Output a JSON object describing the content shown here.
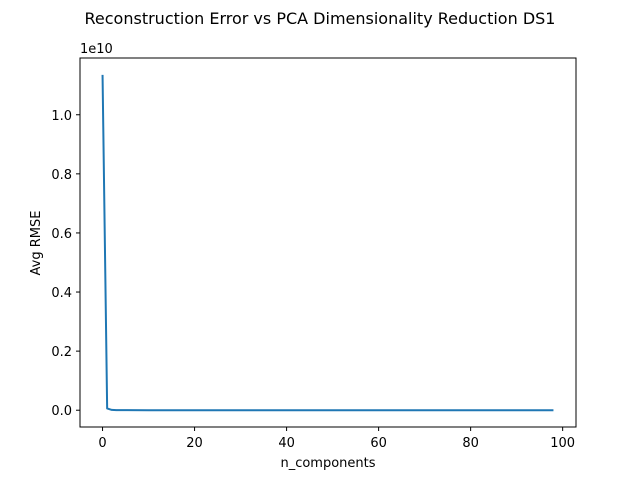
{
  "chart_data": {
    "type": "line",
    "title": "Reconstruction Error vs PCA Dimensionality Reduction DS1",
    "xlabel": "n_components",
    "ylabel": "Avg RMSE",
    "y_offset_label": "1e10",
    "y_scale_factor": 10000000000,
    "xlim": [
      -4.9,
      102.9
    ],
    "ylim": [
      -0.0568,
      1.1921
    ],
    "x_ticks": [
      0,
      20,
      40,
      60,
      80,
      100
    ],
    "y_ticks": [
      0.0,
      0.2,
      0.4,
      0.6,
      0.8,
      1.0
    ],
    "x_tick_labels": [
      "0",
      "20",
      "40",
      "60",
      "80",
      "100"
    ],
    "y_tick_labels": [
      "0.0",
      "0.2",
      "0.4",
      "0.6",
      "0.8",
      "1.0"
    ],
    "grid": false,
    "color": "#1f77b4",
    "x": [
      0,
      1,
      2,
      3,
      4,
      5,
      10,
      20,
      30,
      40,
      50,
      60,
      70,
      80,
      90,
      98
    ],
    "y": [
      1.135,
      0.006,
      0.001,
      0.0005,
      0.0003,
      0.0002,
      0.0001,
      5e-05,
      3e-05,
      2e-05,
      1e-05,
      1e-05,
      1e-05,
      1e-05,
      1e-05,
      1e-05
    ]
  }
}
